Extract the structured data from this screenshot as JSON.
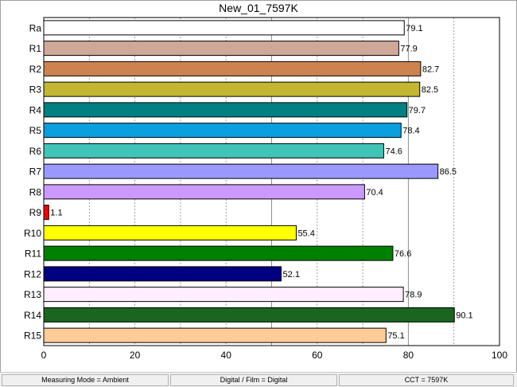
{
  "chart_data": {
    "type": "bar",
    "orientation": "horizontal",
    "title": "New_01_7597K",
    "categories": [
      "Ra",
      "R1",
      "R2",
      "R3",
      "R4",
      "R5",
      "R6",
      "R7",
      "R8",
      "R9",
      "R10",
      "R11",
      "R12",
      "R13",
      "R14",
      "R15"
    ],
    "values": [
      79.1,
      77.9,
      82.7,
      82.5,
      79.7,
      78.4,
      74.6,
      86.5,
      70.4,
      1.1,
      55.4,
      76.6,
      52.1,
      78.9,
      90.1,
      75.1
    ],
    "value_labels": [
      "79.1",
      "77.9",
      "82.7",
      "82.5",
      "79.7",
      "78.4",
      "74.6",
      "86.5",
      "70.4",
      "1.1",
      "55.4",
      "76.6",
      "52.1",
      "78.9",
      "90.1",
      "75.1"
    ],
    "colors": [
      "#ffffff",
      "#cfa89a",
      "#cd8350",
      "#c2b632",
      "#008080",
      "#0aa0e0",
      "#40c4b8",
      "#9999ff",
      "#cc99ff",
      "#ff0000",
      "#ffff00",
      "#008000",
      "#000080",
      "#ffeeff",
      "#1a6620",
      "#ffcc99"
    ],
    "xlim": [
      0,
      100
    ],
    "xticks": [
      "0",
      "20",
      "40",
      "60",
      "80",
      "100"
    ],
    "grid": "vertical dashed every 10, solid at 50 and 80",
    "xlabel": "",
    "ylabel": ""
  },
  "status": {
    "mode": "Measuring Mode = Ambient",
    "film": "Digital / Film = Digital",
    "cct": "CCT = 7597K"
  }
}
